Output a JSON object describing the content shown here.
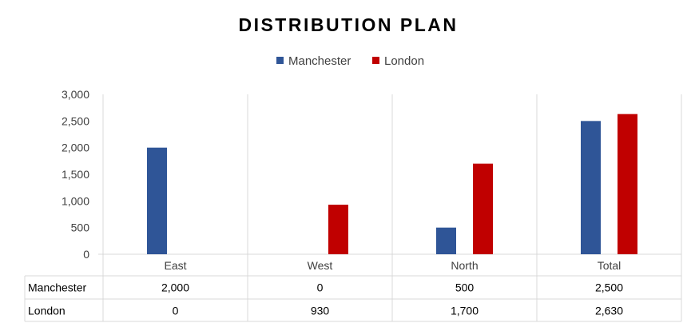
{
  "chart_data": {
    "type": "bar",
    "title": "DISTRIBUTION PLAN",
    "categories": [
      "East",
      "West",
      "North",
      "Total"
    ],
    "series": [
      {
        "name": "Manchester",
        "color": "#2F5597",
        "values": [
          2000,
          0,
          500,
          2500
        ],
        "labels": [
          "2,000",
          "0",
          "500",
          "2,500"
        ]
      },
      {
        "name": "London",
        "color": "#C00000",
        "values": [
          0,
          930,
          1700,
          2630
        ],
        "labels": [
          "0",
          "930",
          "1,700",
          "2,630"
        ]
      }
    ],
    "ylim": [
      0,
      3000
    ],
    "yticks": [
      0,
      500,
      1000,
      1500,
      2000,
      2500,
      3000
    ],
    "ytick_labels": [
      "0",
      "500",
      "1,000",
      "1,500",
      "2,000",
      "2,500",
      "3,000"
    ],
    "grid": "vertical",
    "legend": "top-center",
    "data_table": true,
    "xlabel": "",
    "ylabel": ""
  }
}
